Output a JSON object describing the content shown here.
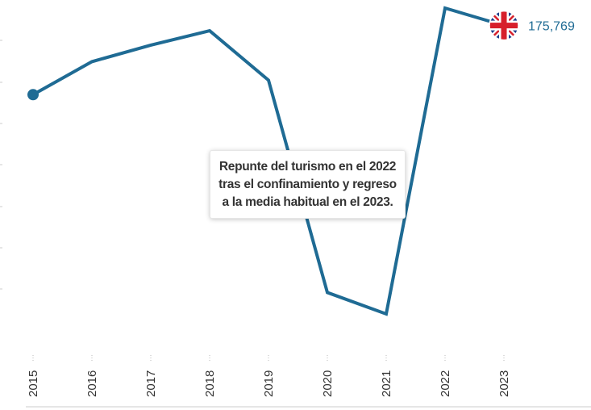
{
  "chart_data": {
    "type": "line",
    "title": "",
    "xlabel": "",
    "ylabel": "",
    "categories": [
      "2015",
      "2016",
      "2017",
      "2018",
      "2019",
      "2020",
      "2021",
      "2022",
      "2023"
    ],
    "series": [
      {
        "name": "United Kingdom",
        "icon": "uk-flag-icon",
        "color": "#1f6b94",
        "values": [
          159000,
          167000,
          171000,
          174500,
          162500,
          111000,
          105800,
          180000,
          175769
        ],
        "end_label": "175,769"
      }
    ],
    "ylim": [
      90000,
      182000
    ],
    "grid": false,
    "annotation": {
      "lines": [
        "Repunte del turismo en el 2022",
        "tras el confinamiento y regreso",
        "a la media habitual en el 2023."
      ]
    }
  },
  "colors": {
    "line": "#1f6b94",
    "axis": "#cccccc",
    "flag_blue": "#1f3f8c",
    "flag_red": "#d71f2b"
  }
}
